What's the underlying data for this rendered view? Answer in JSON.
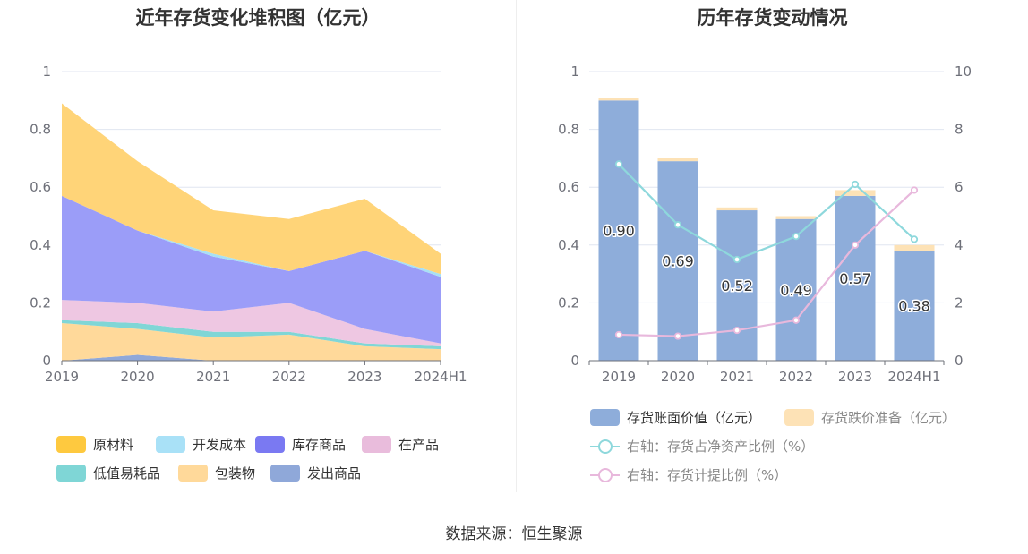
{
  "source_text": "数据来源：恒生聚源",
  "chart_data": [
    {
      "type": "area",
      "stacked": true,
      "title": "近年存货变化堆积图（亿元）",
      "categories": [
        "2019",
        "2020",
        "2021",
        "2022",
        "2023",
        "2024H1"
      ],
      "y_ticks": [
        "0",
        "0.2",
        "0.4",
        "0.6",
        "0.8",
        "1"
      ],
      "ylim": [
        0,
        1
      ],
      "series": [
        {
          "name": "发出商品",
          "color": "#8fa8d9",
          "values": [
            0.0,
            0.02,
            0.0,
            0.0,
            0.0,
            0.0
          ]
        },
        {
          "name": "包装物",
          "color": "#ffd99a",
          "values": [
            0.13,
            0.09,
            0.08,
            0.09,
            0.05,
            0.04
          ]
        },
        {
          "name": "低值易耗品",
          "color": "#80d6d6",
          "values": [
            0.01,
            0.02,
            0.02,
            0.01,
            0.01,
            0.01
          ]
        },
        {
          "name": "在产品",
          "color": "#eec7e2",
          "values": [
            0.07,
            0.07,
            0.07,
            0.1,
            0.05,
            0.01
          ]
        },
        {
          "name": "库存商品",
          "color": "#9b9df8",
          "values": [
            0.36,
            0.25,
            0.19,
            0.11,
            0.27,
            0.23
          ]
        },
        {
          "name": "开发成本",
          "color": "#a8e0f5",
          "values": [
            0.0,
            0.0,
            0.01,
            0.0,
            0.0,
            0.01
          ]
        },
        {
          "name": "原材料",
          "color": "#ffd478",
          "values": [
            0.32,
            0.24,
            0.15,
            0.18,
            0.18,
            0.07
          ]
        }
      ],
      "legend": [
        {
          "name": "原材料",
          "color": "#fec93f"
        },
        {
          "name": "开发成本",
          "color": "#a9e1f7"
        },
        {
          "name": "库存商品",
          "color": "#7a79f2"
        },
        {
          "name": "在产品",
          "color": "#e9bcdc"
        },
        {
          "name": "低值易耗品",
          "color": "#7fd6d6"
        },
        {
          "name": "包装物",
          "color": "#ffd99a"
        },
        {
          "name": "发出商品",
          "color": "#8fa8d9"
        }
      ]
    },
    {
      "type": "bar+line",
      "title": "历年存货变动情况",
      "categories": [
        "2019",
        "2020",
        "2021",
        "2022",
        "2023",
        "2024H1"
      ],
      "y_ticks_left": [
        "0",
        "0.2",
        "0.4",
        "0.6",
        "0.8",
        "1"
      ],
      "y_ticks_right": [
        "0",
        "2",
        "4",
        "6",
        "8",
        "10"
      ],
      "ylim_left": [
        0,
        1
      ],
      "ylim_right": [
        0,
        10
      ],
      "bars": [
        {
          "name": "存货账面价值（亿元）",
          "color": "#8eadda",
          "values": [
            0.9,
            0.69,
            0.52,
            0.49,
            0.57,
            0.38
          ],
          "labels": [
            "0.90",
            "0.69",
            "0.52",
            "0.49",
            "0.57",
            "0.38"
          ]
        },
        {
          "name": "存货跌价准备（亿元）",
          "color": "#fde2b6",
          "values": [
            0.01,
            0.01,
            0.01,
            0.01,
            0.02,
            0.02
          ]
        }
      ],
      "lines": [
        {
          "name": "右轴：存货占净资产比例（%）",
          "color": "#8ed8dc",
          "values": [
            6.8,
            4.7,
            3.5,
            4.3,
            6.1,
            4.2
          ]
        },
        {
          "name": "右轴：存货计提比例（%）",
          "color": "#e8b8dc",
          "values": [
            0.9,
            0.85,
            1.05,
            1.4,
            4.0,
            5.9
          ]
        }
      ]
    }
  ]
}
